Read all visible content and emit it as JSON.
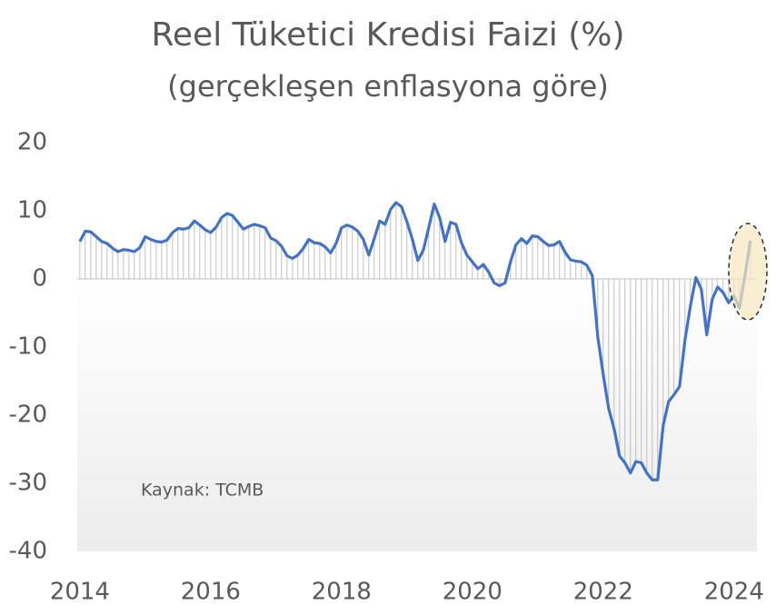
{
  "chart_data": {
    "type": "line",
    "title": "Reel Tüketici Kredisi Faizi (%)",
    "subtitle": "(gerçekleşen enflasyona göre)",
    "annotation": "Kaynak: TCMB",
    "x": [
      2014,
      2014.083,
      2014.167,
      2014.25,
      2014.333,
      2014.417,
      2014.5,
      2014.583,
      2014.667,
      2014.75,
      2014.833,
      2014.917,
      2015,
      2015.083,
      2015.167,
      2015.25,
      2015.333,
      2015.417,
      2015.5,
      2015.583,
      2015.667,
      2015.75,
      2015.833,
      2015.917,
      2016,
      2016.083,
      2016.167,
      2016.25,
      2016.333,
      2016.417,
      2016.5,
      2016.583,
      2016.667,
      2016.75,
      2016.833,
      2016.917,
      2017,
      2017.083,
      2017.167,
      2017.25,
      2017.333,
      2017.417,
      2017.5,
      2017.583,
      2017.667,
      2017.75,
      2017.833,
      2017.917,
      2018,
      2018.083,
      2018.167,
      2018.25,
      2018.333,
      2018.417,
      2018.5,
      2018.583,
      2018.667,
      2018.75,
      2018.833,
      2018.917,
      2019,
      2019.083,
      2019.167,
      2019.25,
      2019.333,
      2019.417,
      2019.5,
      2019.583,
      2019.667,
      2019.75,
      2019.833,
      2019.917,
      2020,
      2020.083,
      2020.167,
      2020.25,
      2020.333,
      2020.417,
      2020.5,
      2020.583,
      2020.667,
      2020.75,
      2020.833,
      2020.917,
      2021,
      2021.083,
      2021.167,
      2021.25,
      2021.333,
      2021.417,
      2021.5,
      2021.583,
      2021.667,
      2021.75,
      2021.833,
      2021.917,
      2022,
      2022.083,
      2022.167,
      2022.25,
      2022.333,
      2022.417,
      2022.5,
      2022.583,
      2022.667,
      2022.75,
      2022.833,
      2022.917,
      2023,
      2023.083,
      2023.167,
      2023.25,
      2023.333,
      2023.417,
      2023.5,
      2023.583,
      2023.667,
      2023.75,
      2023.833,
      2023.917,
      2024,
      2024.083,
      2024.167,
      2024.25
    ],
    "series": [
      {
        "name": "Reel Tüketici Kredisi Faizi",
        "color": "#4472c4",
        "values": [
          5.5,
          7.0,
          6.9,
          6.2,
          5.5,
          5.2,
          4.5,
          4.0,
          4.3,
          4.2,
          4.0,
          4.6,
          6.2,
          5.8,
          5.5,
          5.4,
          5.7,
          6.8,
          7.4,
          7.3,
          7.5,
          8.5,
          7.9,
          7.2,
          6.8,
          7.6,
          9.0,
          9.6,
          9.3,
          8.3,
          7.3,
          7.7,
          8.0,
          7.8,
          7.5,
          6.0,
          5.6,
          4.8,
          3.4,
          3.0,
          3.5,
          4.5,
          5.8,
          5.3,
          5.2,
          4.7,
          3.8,
          5.2,
          7.5,
          7.9,
          7.6,
          7.0,
          5.8,
          3.5,
          5.9,
          8.5,
          8.0,
          10.2,
          11.2,
          10.6,
          8.4,
          5.8,
          2.7,
          4.2,
          7.5,
          11.0,
          9.0,
          5.5,
          8.3,
          8.0,
          5.3,
          3.5,
          2.5,
          1.5,
          2.1,
          1.0,
          -0.6,
          -1.0,
          -0.6,
          2.5,
          5.0,
          5.9,
          5.2,
          6.3,
          6.2,
          5.5,
          4.9,
          5.0,
          5.5,
          3.9,
          2.8,
          2.6,
          2.5,
          2.0,
          0.5,
          -8.5,
          -14,
          -19,
          -22,
          -26,
          -27,
          -28.5,
          -26.8,
          -27,
          -28.5,
          -29.5,
          -29.5,
          -21.5,
          -18,
          -17,
          -15.8,
          -9,
          -4,
          0.2,
          -1.5,
          -8.2,
          -3,
          -1.2,
          -2,
          -3.5,
          -2.5,
          -4.3,
          0.5,
          5.6
        ]
      }
    ],
    "xlim": [
      2013.96,
      2024.35
    ],
    "xticks": [
      2014,
      2016,
      2018,
      2020,
      2022,
      2024
    ],
    "ylim": [
      -40,
      20
    ],
    "yticks": [
      -40,
      -30,
      -20,
      -10,
      0,
      10,
      20
    ]
  }
}
